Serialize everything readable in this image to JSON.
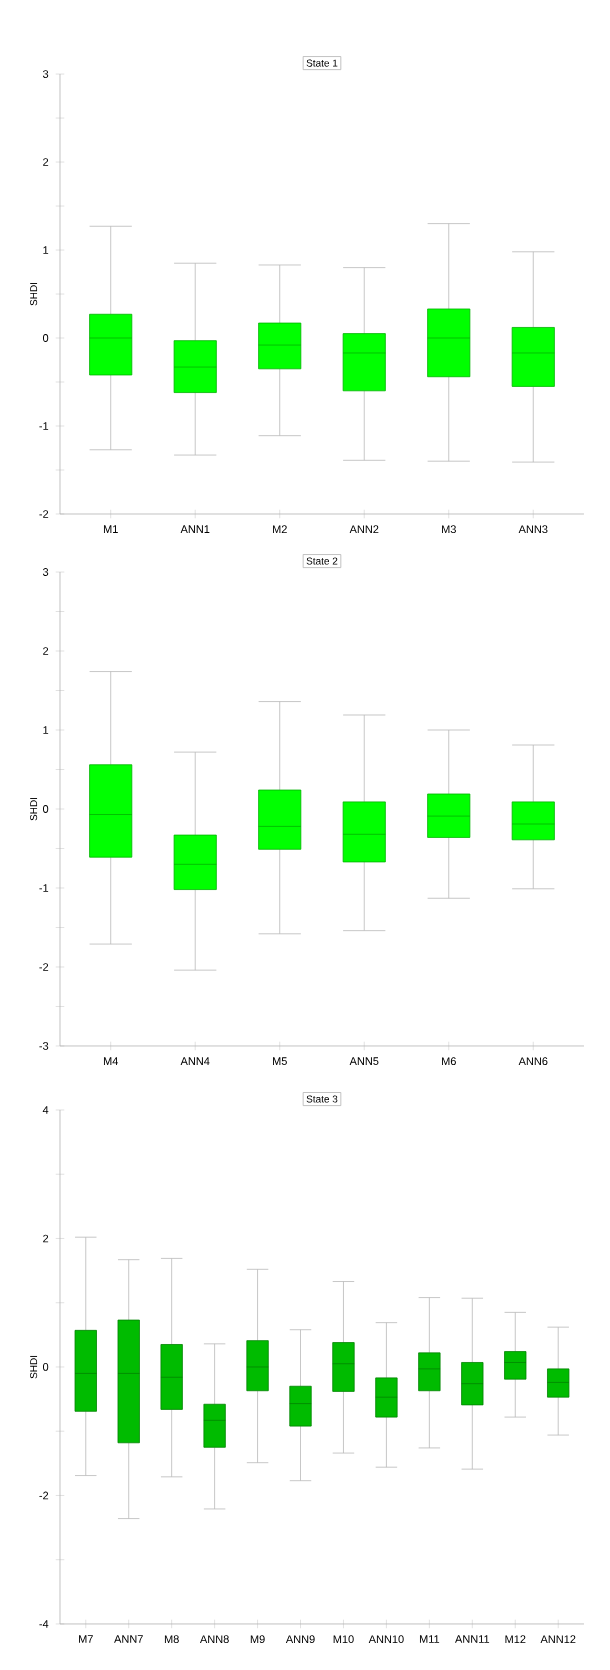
{
  "chart_data": [
    {
      "type": "box",
      "title": "State 1",
      "ylabel": "SHDI",
      "color": "#00ff00",
      "categories": [
        "M1",
        "ANN1",
        "M2",
        "ANN2",
        "M3",
        "ANN3"
      ],
      "boxes": [
        {
          "low": -1.27,
          "q1": -0.42,
          "median": 0,
          "q3": 0.27,
          "high": 1.27
        },
        {
          "low": -1.33,
          "q1": -0.62,
          "median": -0.33,
          "q3": -0.03,
          "high": 0.85
        },
        {
          "low": -1.11,
          "q1": -0.35,
          "median": -0.08,
          "q3": 0.17,
          "high": 0.83
        },
        {
          "low": -1.39,
          "q1": -0.6,
          "median": -0.17,
          "q3": 0.05,
          "high": 0.8
        },
        {
          "low": -1.4,
          "q1": -0.44,
          "median": 0,
          "q3": 0.33,
          "high": 1.3
        },
        {
          "low": -1.41,
          "q1": -0.55,
          "median": -0.17,
          "q3": 0.12,
          "high": 0.98
        }
      ],
      "ylim": [
        -2,
        3
      ],
      "yticks": [
        -2,
        {
          "value": -1.5,
          "label": null
        },
        -1,
        {
          "value": -0.5,
          "label": null
        },
        0,
        {
          "value": 0.5,
          "label": null
        },
        1,
        {
          "value": 1.5,
          "label": null
        },
        2,
        {
          "value": 2.5,
          "label": null
        },
        3
      ]
    },
    {
      "type": "box",
      "title": "State 2",
      "ylabel": "SHDI",
      "color": "#00ff00",
      "categories": [
        "M4",
        "ANN4",
        "M5",
        "ANN5",
        "M6",
        "ANN6"
      ],
      "boxes": [
        {
          "low": -1.71,
          "q1": -0.61,
          "median": -0.07,
          "q3": 0.56,
          "high": 1.74
        },
        {
          "low": -2.04,
          "q1": -1.02,
          "median": -0.7,
          "q3": -0.33,
          "high": 0.72
        },
        {
          "low": -1.58,
          "q1": -0.51,
          "median": -0.22,
          "q3": 0.24,
          "high": 1.36
        },
        {
          "low": -1.54,
          "q1": -0.67,
          "median": -0.32,
          "q3": 0.09,
          "high": 1.19
        },
        {
          "low": -1.13,
          "q1": -0.36,
          "median": -0.09,
          "q3": 0.19,
          "high": 1.0
        },
        {
          "low": -1.01,
          "q1": -0.39,
          "median": -0.19,
          "q3": 0.09,
          "high": 0.81
        }
      ],
      "ylim": [
        -3,
        3
      ],
      "yticks": [
        -3,
        {
          "value": -2.5,
          "label": null
        },
        -2,
        {
          "value": -1.5,
          "label": null
        },
        -1,
        {
          "value": -0.5,
          "label": null
        },
        0,
        {
          "value": 0.5,
          "label": null
        },
        1,
        {
          "value": 1.5,
          "label": null
        },
        2,
        {
          "value": 2.5,
          "label": null
        },
        3
      ]
    },
    {
      "type": "box",
      "title": "State 3",
      "ylabel": "SHDI",
      "color": "#00bb00",
      "categories": [
        "M7",
        "ANN7",
        "M8",
        "ANN8",
        "M9",
        "ANN9",
        "M10",
        "ANN10",
        "M11",
        "ANN11",
        "M12",
        "ANN12"
      ],
      "boxes": [
        {
          "low": -1.69,
          "q1": -0.69,
          "median": -0.1,
          "q3": 0.57,
          "high": 2.02
        },
        {
          "low": -2.36,
          "q1": -1.18,
          "median": -0.1,
          "q3": 0.73,
          "high": 1.67
        },
        {
          "low": -1.71,
          "q1": -0.66,
          "median": -0.16,
          "q3": 0.35,
          "high": 1.69
        },
        {
          "low": -2.21,
          "q1": -1.25,
          "median": -0.83,
          "q3": -0.58,
          "high": 0.36
        },
        {
          "low": -1.49,
          "q1": -0.37,
          "median": 0,
          "q3": 0.41,
          "high": 1.52
        },
        {
          "low": -1.77,
          "q1": -0.92,
          "median": -0.57,
          "q3": -0.3,
          "high": 0.58
        },
        {
          "low": -1.34,
          "q1": -0.38,
          "median": 0.05,
          "q3": 0.38,
          "high": 1.33
        },
        {
          "low": -1.56,
          "q1": -0.78,
          "median": -0.47,
          "q3": -0.17,
          "high": 0.69
        },
        {
          "low": -1.26,
          "q1": -0.37,
          "median": -0.03,
          "q3": 0.22,
          "high": 1.08
        },
        {
          "low": -1.59,
          "q1": -0.59,
          "median": -0.26,
          "q3": 0.07,
          "high": 1.07
        },
        {
          "low": -0.78,
          "q1": -0.19,
          "median": 0.07,
          "q3": 0.24,
          "high": 0.85
        },
        {
          "low": -1.06,
          "q1": -0.47,
          "median": -0.24,
          "q3": -0.03,
          "high": 0.62
        }
      ],
      "ylim": [
        -4,
        4
      ],
      "yticks": [
        -4,
        {
          "value": -3,
          "label": null
        },
        -2,
        {
          "value": -1,
          "label": null
        },
        0,
        {
          "value": 1,
          "label": null
        },
        2,
        {
          "value": 3,
          "label": null
        },
        4
      ]
    }
  ]
}
